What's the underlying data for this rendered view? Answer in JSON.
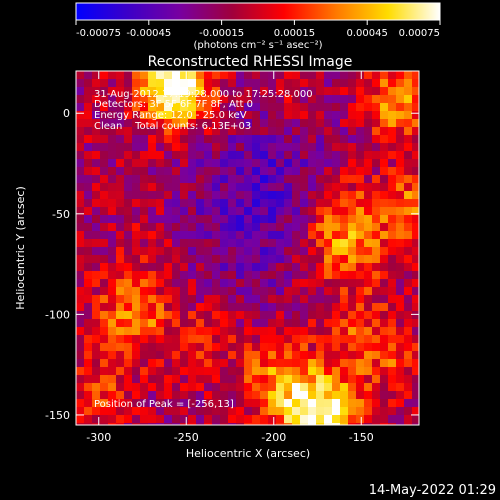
{
  "colorbar": {
    "ticks": [
      "-0.00075",
      "-0.00045",
      "-0.00015",
      "0.00015",
      "0.00045",
      "0.00075"
    ],
    "tick_values": [
      -0.00075,
      -0.00045,
      -0.00015,
      0.00015,
      0.00045,
      0.00075
    ],
    "unit": "(photons cm⁻² s⁻¹ asec⁻²)",
    "colormap": [
      "#0000ff",
      "#3c00c8",
      "#7800a0",
      "#a0003c",
      "#ff0000",
      "#ff7800",
      "#ffdc00",
      "#ffffff"
    ]
  },
  "chart_data": {
    "type": "heatmap",
    "title": "Reconstructed RHESSI Image",
    "xlabel": "Heliocentric X (arcsec)",
    "ylabel": "Heliocentric Y (arcsec)",
    "xlim": [
      -313,
      -117
    ],
    "ylim": [
      -155,
      21
    ],
    "x_ticks": [
      -300,
      -250,
      -200,
      -150
    ],
    "y_ticks": [
      0,
      -50,
      -100,
      -150
    ],
    "value_range": [
      -0.00075,
      0.00075
    ],
    "peak_position": [
      -256,
      13
    ],
    "annotations": [
      "31-Aug-2012 17:19:28.000 to 17:25:28.000",
      "Detectors: 3F 5F 6F 7F 8F, Att 0",
      "Energy Range: 12.0 - 25.0 keV",
      "Clean    Total counts: 6.13E+03"
    ],
    "peak_label": "Position of Peak = [-256,13]"
  },
  "footer": {
    "timestamp": "14-May-2022 01:29"
  }
}
